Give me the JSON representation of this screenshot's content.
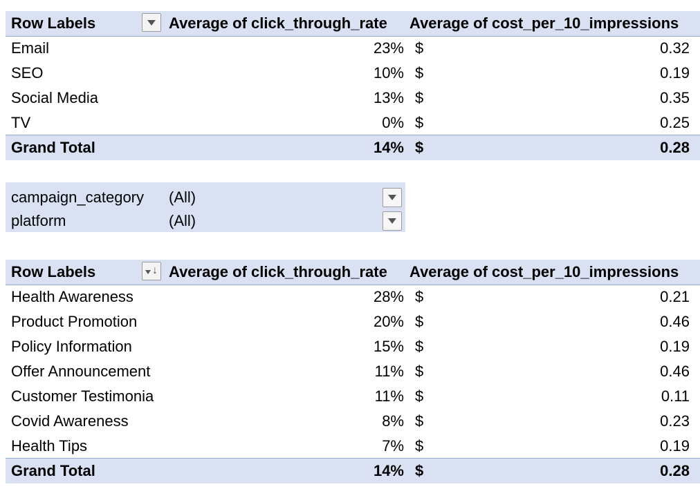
{
  "table1": {
    "header": {
      "row_labels": "Row Labels",
      "ctr": "Average of click_through_rate",
      "cost": "Average of cost_per_10_impressions"
    },
    "filter_button_icon": "dropdown-arrow-icon",
    "rows": [
      {
        "label": "Email",
        "ctr": "23%",
        "currency": "$",
        "cost": "0.32"
      },
      {
        "label": "SEO",
        "ctr": "10%",
        "currency": "$",
        "cost": "0.19"
      },
      {
        "label": "Social Media",
        "ctr": "13%",
        "currency": "$",
        "cost": "0.35"
      },
      {
        "label": "TV",
        "ctr": "0%",
        "currency": "$",
        "cost": "0.25"
      }
    ],
    "total": {
      "label": "Grand Total",
      "ctr": "14%",
      "currency": "$",
      "cost": "0.28"
    }
  },
  "filters": [
    {
      "name": "campaign_category",
      "value": "(All)"
    },
    {
      "name": "platform",
      "value": "(All)"
    }
  ],
  "table2": {
    "header": {
      "row_labels": "Row Labels",
      "ctr": "Average of click_through_rate",
      "cost": "Average of cost_per_10_impressions"
    },
    "sort_button_icon": "sort-descending-icon",
    "rows": [
      {
        "label": "Health Awareness",
        "ctr": "28%",
        "currency": "$",
        "cost": "0.21"
      },
      {
        "label": "Product Promotion",
        "ctr": "20%",
        "currency": "$",
        "cost": "0.46"
      },
      {
        "label": "Policy Information",
        "ctr": "15%",
        "currency": "$",
        "cost": "0.19"
      },
      {
        "label": "Offer Announcement",
        "ctr": "11%",
        "currency": "$",
        "cost": "0.46"
      },
      {
        "label": "Customer Testimonia",
        "ctr": "11%",
        "currency": "$",
        "cost": "0.11"
      },
      {
        "label": "Covid Awareness",
        "ctr": "8%",
        "currency": "$",
        "cost": "0.23"
      },
      {
        "label": "Health Tips",
        "ctr": "7%",
        "currency": "$",
        "cost": "0.19"
      }
    ],
    "total": {
      "label": "Grand Total",
      "ctr": "14%",
      "currency": "$",
      "cost": "0.28"
    }
  }
}
